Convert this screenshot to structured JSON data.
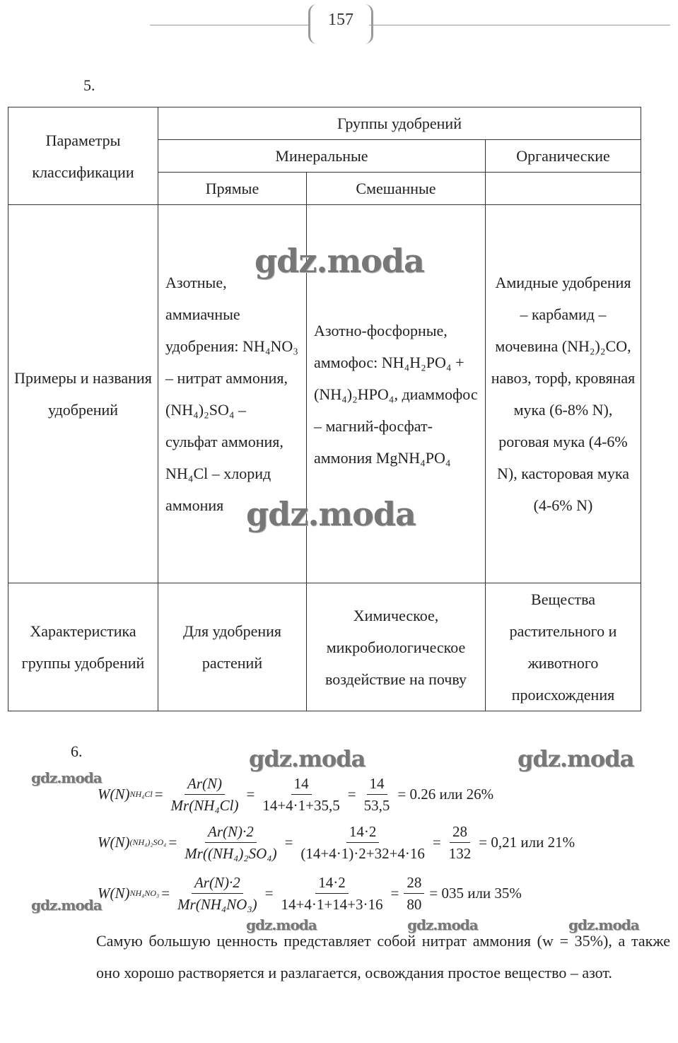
{
  "page_number": "157",
  "task5_number": "5.",
  "task6_number": "6.",
  "table": {
    "param_header": "Параметры классификации",
    "groups_header": "Группы удобрений",
    "mineral": "Минеральные",
    "organic": "Органические",
    "direct": "Прямые",
    "mixed": "Смешанные",
    "row1_label": "Примеры и названия удобрений",
    "row1_direct": "Азотные, аммиачные удобрения: NH₄NO₃ – нитрат аммония, (NH₄)₂SO₄ – сульфат аммония, NH₄Cl – хлорид аммония",
    "row1_mixed": "Азотно-фосфорные, аммофос: NH₄H₂PO₄ + (NH₄)₂HPO₄, диаммофос – магний-фосфат-аммония MgNH₄PO₄",
    "row1_organic": "Амидные удобрения – карбамид – мочевина (NH₂)₂CO, навоз, торф, кровяная мука (6-8% N), роговая мука (4-6% N), касторовая мука (4-6% N)",
    "row2_label": "Характеристика группы удобрений",
    "row2_direct": "Для удобрения растений",
    "row2_mixed": "Химическое, микробиологическое воздействие на почву",
    "row2_organic": "Вещества растительного и животного происхождения"
  },
  "formulas": [
    {
      "lhs": "W(N)",
      "sub": "NH₄Cl",
      "f1n": "Ar(N)",
      "f1d": "Mr(NH₄Cl)",
      "f2n": "14",
      "f2d": "14+4·1+35,5",
      "f3n": "14",
      "f3d": "53,5",
      "result": "= 0.26 или 26%"
    },
    {
      "lhs": "W(N)",
      "sub": "(NH₄)₂SO₄",
      "f1n": "Ar(N)·2",
      "f1d": "Mr((NH₄)₂SO₄)",
      "f2n": "14·2",
      "f2d": "(14+4·1)·2+32+4·16",
      "f3n": "28",
      "f3d": "132",
      "result": "= 0,21 или 21%"
    },
    {
      "lhs": "W(N)",
      "sub": "NH₄NO₃",
      "f1n": "Ar(N)·2",
      "f1d": "Mr(NH₄NO₃)",
      "f2n": "14·2",
      "f2d": "14+4·1+14+3·16",
      "f3n": "28",
      "f3d": "80",
      "result": "= 035 или 35%"
    }
  ],
  "conclusion": "Самую большую ценность представляет собой нитрат аммония (w = 35%), а также оно хорошо растворяется и разлагается, освождания простое вещество – азот.",
  "watermark": "gdz.moda"
}
